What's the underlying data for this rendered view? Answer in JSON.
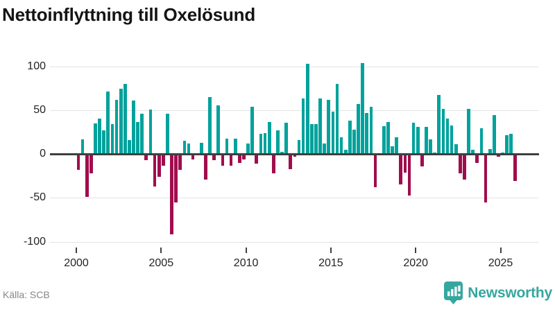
{
  "header": {
    "title": "Nettoinflyttning till Oxelösund"
  },
  "footer": {
    "source": "Källa: SCB",
    "brand": "Newsworthy"
  },
  "chart_data": {
    "type": "bar",
    "title": "Nettoinflyttning till Oxelösund",
    "frequency": "quarterly",
    "xlabel": "",
    "ylabel": "",
    "ylim": [
      -100,
      110
    ],
    "grid": true,
    "legend": false,
    "y_ticks": [
      100,
      50,
      0,
      -50,
      -100
    ],
    "y_tick_labels": [
      "100",
      "50",
      "0",
      "-50",
      "-100"
    ],
    "x_tick_years": [
      2000,
      2005,
      2010,
      2015,
      2020,
      2025
    ],
    "x_tick_labels": [
      "2000",
      "2005",
      "2010",
      "2015",
      "2020",
      "2025"
    ],
    "positive_color": "#00a29c",
    "negative_color": "#a00d4d",
    "series_by_year": [
      {
        "year": 2000,
        "values": [
          -18,
          17,
          -49,
          -22
        ]
      },
      {
        "year": 2001,
        "values": [
          35,
          41,
          27,
          72
        ]
      },
      {
        "year": 2002,
        "values": [
          34,
          62,
          75,
          80
        ]
      },
      {
        "year": 2003,
        "values": [
          16,
          61,
          37,
          46
        ]
      },
      {
        "year": 2004,
        "values": [
          -7,
          51,
          -37,
          -26
        ]
      },
      {
        "year": 2005,
        "values": [
          -13,
          46,
          -92,
          -55
        ]
      },
      {
        "year": 2006,
        "values": [
          -18,
          15,
          12,
          -6
        ]
      },
      {
        "year": 2007,
        "values": [
          0,
          13,
          -29,
          65
        ]
      },
      {
        "year": 2008,
        "values": [
          -7,
          56,
          -13,
          18
        ]
      },
      {
        "year": 2009,
        "values": [
          -13,
          18,
          -10,
          -6
        ]
      },
      {
        "year": 2010,
        "values": [
          12,
          54,
          -11,
          23
        ]
      },
      {
        "year": 2011,
        "values": [
          24,
          37,
          -22,
          27
        ]
      },
      {
        "year": 2012,
        "values": [
          3,
          36,
          -17,
          -3
        ]
      },
      {
        "year": 2013,
        "values": [
          16,
          64,
          103,
          34
        ]
      },
      {
        "year": 2014,
        "values": [
          34,
          64,
          12,
          62
        ]
      },
      {
        "year": 2015,
        "values": [
          49,
          80,
          19,
          5
        ]
      },
      {
        "year": 2016,
        "values": [
          38,
          28,
          57,
          104
        ]
      },
      {
        "year": 2017,
        "values": [
          47,
          54,
          -38,
          0
        ]
      },
      {
        "year": 2018,
        "values": [
          32,
          37,
          9,
          19
        ]
      },
      {
        "year": 2019,
        "values": [
          -35,
          -21,
          -47,
          36
        ]
      },
      {
        "year": 2020,
        "values": [
          31,
          -14,
          31,
          17
        ]
      },
      {
        "year": 2021,
        "values": [
          2,
          68,
          52,
          41
        ]
      },
      {
        "year": 2022,
        "values": [
          33,
          11,
          -22,
          -29
        ]
      },
      {
        "year": 2023,
        "values": [
          52,
          5,
          -10,
          30
        ]
      },
      {
        "year": 2024,
        "values": [
          -55,
          6,
          45,
          -3
        ]
      },
      {
        "year": 2025,
        "values": [
          2,
          22,
          23,
          -31
        ]
      }
    ]
  }
}
